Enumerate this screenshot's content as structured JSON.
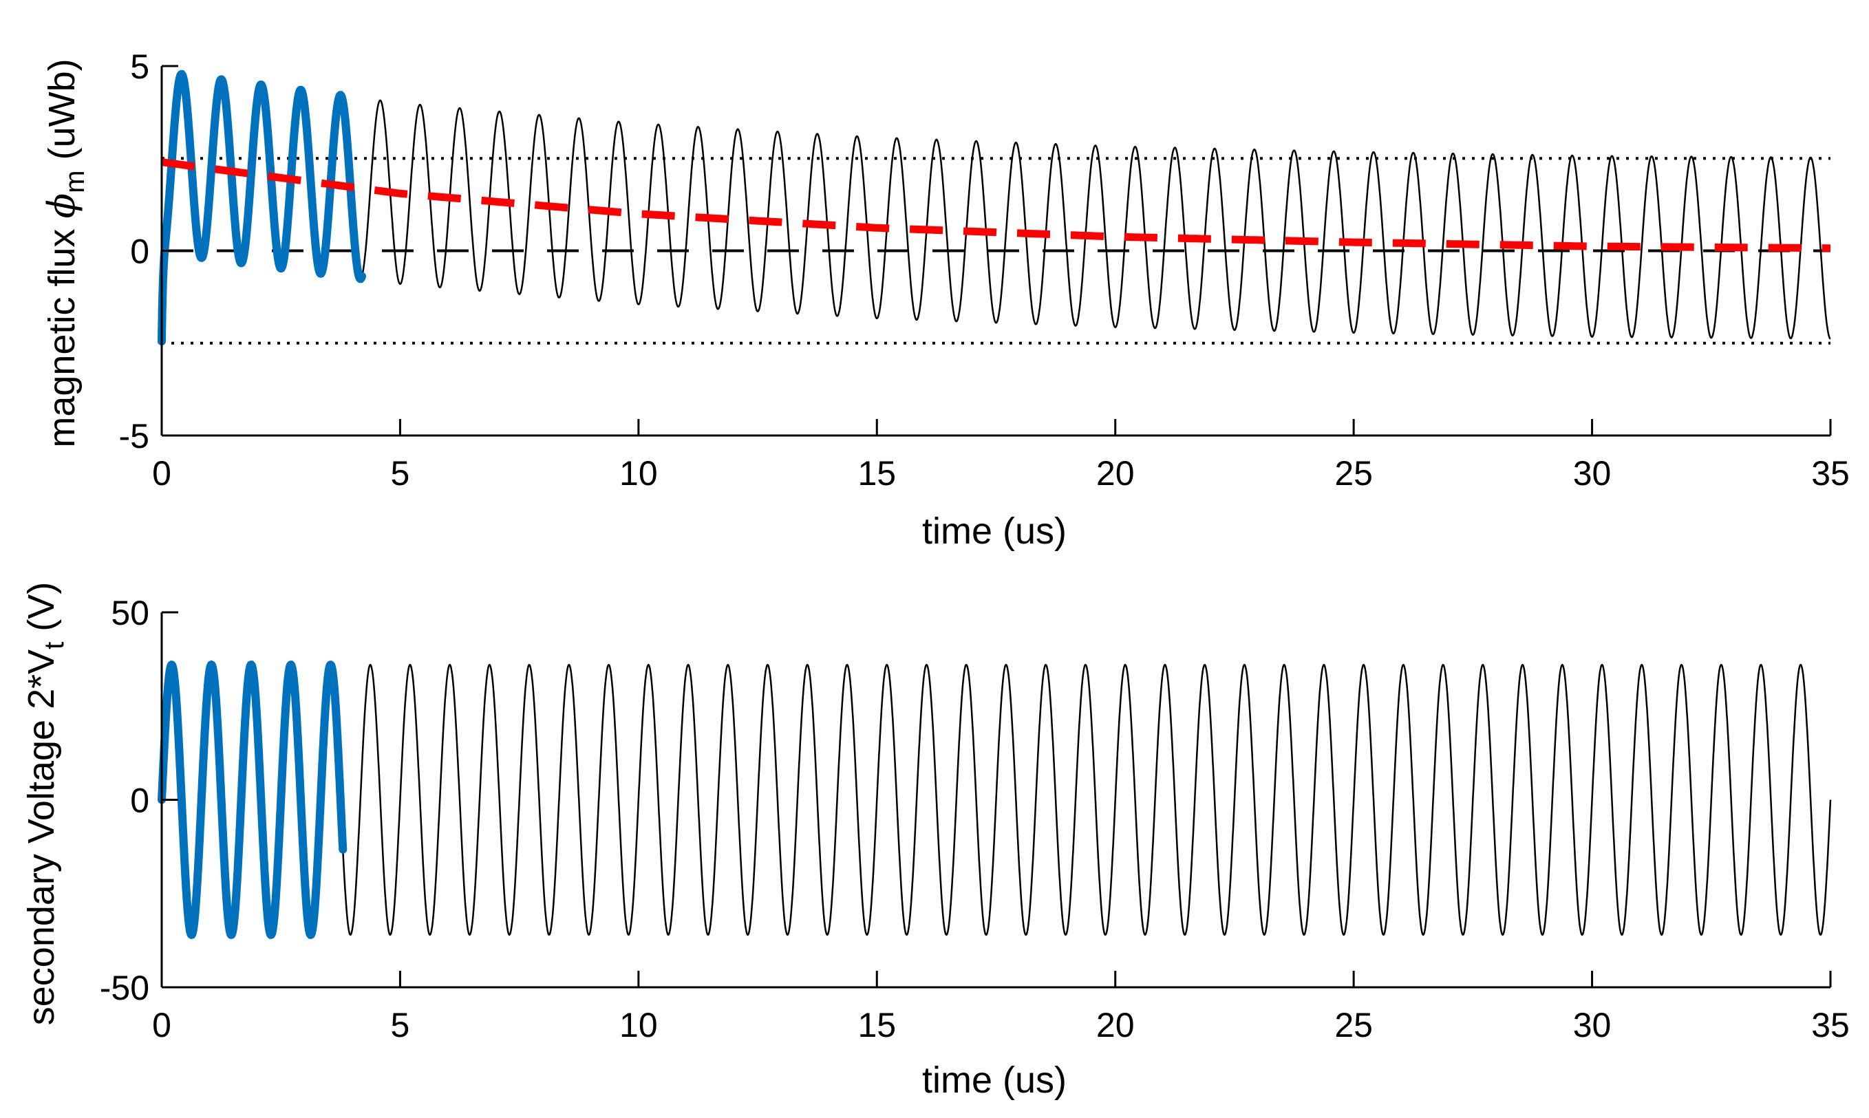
{
  "chart_data": [
    {
      "type": "line",
      "xlabel": "time (us)",
      "ylabel": {
        "main": "magnetic flux ",
        "symbol": "ϕ",
        "subscript": "m",
        "unit": "  (uWb)"
      },
      "xlim": [
        0,
        35
      ],
      "ylim": [
        -5,
        5
      ],
      "xticks": [
        0,
        5,
        10,
        15,
        20,
        25,
        30,
        35
      ],
      "yticks": [
        5,
        0,
        -5
      ],
      "ytick_labels": [
        "5",
        "0",
        "-5"
      ],
      "grid": false,
      "frequency_mhz": 1.2,
      "series": [
        {
          "color": "#000000",
          "style": "solid-thin",
          "x_range": [
            0,
            35
          ],
          "description_points": {
            "x": [
              0,
              0.42,
              4.6,
              10,
              15,
              20,
              25,
              30,
              35
            ],
            "y": [
              0,
              4.6,
              4.0,
              3.5,
              3.0,
              2.75,
              2.6,
              2.55,
              2.5
            ]
          }
        },
        {
          "color": "#0072BD",
          "style": "solid-thick",
          "x_range": [
            0,
            4.2
          ],
          "offset_y": [
            2.4,
            1.6
          ],
          "amplitude": 2.4
        },
        {
          "color": "#FF0000",
          "style": "dashed-thick",
          "x": [
            0,
            5,
            10,
            15,
            20,
            25,
            30,
            35
          ],
          "y": [
            2.4,
            1.55,
            1.0,
            0.62,
            0.38,
            0.23,
            0.12,
            0.07
          ]
        },
        {
          "color": "#000000",
          "style": "dashed-thin",
          "y_const": 0
        },
        {
          "color": "#000000",
          "style": "dotted",
          "y_const": 2.5
        },
        {
          "color": "#000000",
          "style": "dotted",
          "y_const": -2.5
        }
      ]
    },
    {
      "type": "line",
      "xlabel": "time (us)",
      "ylabel": {
        "main": "secondary Voltage 2*V",
        "subscript": "t",
        "unit": " (V)"
      },
      "xlim": [
        0,
        35
      ],
      "ylim": [
        -50,
        50
      ],
      "xticks": [
        0,
        5,
        10,
        15,
        20,
        25,
        30,
        35
      ],
      "yticks": [
        50,
        0,
        -50
      ],
      "ytick_labels": [
        "50",
        "0",
        "-50"
      ],
      "grid": false,
      "frequency_mhz": 1.2,
      "amplitude": 36,
      "series": [
        {
          "color": "#000000",
          "style": "solid-thin",
          "x_range": [
            0,
            35
          ]
        },
        {
          "color": "#0072BD",
          "style": "solid-thick",
          "x_range": [
            0,
            3.8
          ]
        }
      ]
    }
  ]
}
